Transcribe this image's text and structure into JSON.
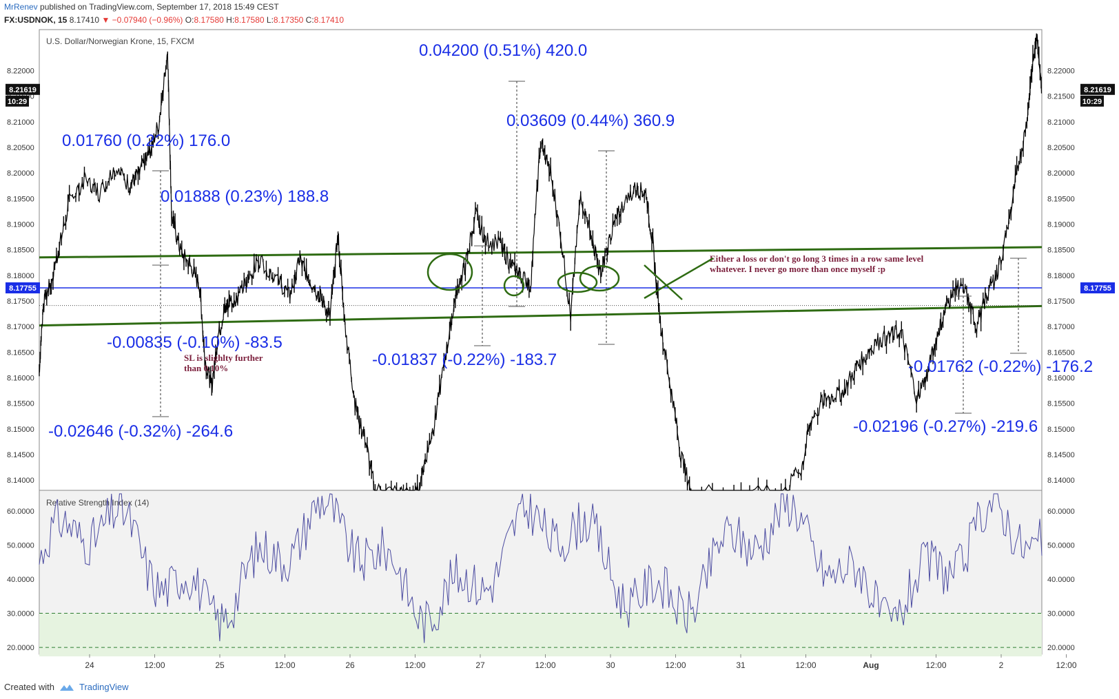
{
  "header": {
    "author": "MrRenev",
    "published": "published on TradingView.com, September 17, 2018 15:49 CEST",
    "symbol": "FX:USDNOK, 15",
    "last": "8.17410",
    "change": "−0.07940 (−0.96%)",
    "ohlc": [
      {
        "label": "O:",
        "value": "8.17580"
      },
      {
        "label": "H:",
        "value": "8.17580"
      },
      {
        "label": "L:",
        "value": "8.17350"
      },
      {
        "label": "C:",
        "value": "8.17410"
      }
    ]
  },
  "footer": {
    "created_with": "Created with",
    "brand": "TradingView"
  },
  "colors": {
    "candle": "#000000",
    "trendline": "#2e6b12",
    "hline": "#1a2ee6",
    "measure_text": "#1a2ee6",
    "note_text": "#7b1f3c",
    "rsi_line": "#4a4aa0",
    "rsi_bg": "#f2f2f2",
    "rsi_band": "#e6f3e0",
    "axis_text": "#333333"
  },
  "chart_data": [
    {
      "type": "line",
      "title": "U.S. Dollar/Norwegian Krone, 15, FXCM",
      "ylim": [
        8.138,
        8.228
      ],
      "y_ticks": [
        "8.14000",
        "8.14500",
        "8.15000",
        "8.15500",
        "8.16000",
        "8.16500",
        "8.17000",
        "8.17500",
        "8.18000",
        "8.18500",
        "8.19000",
        "8.19500",
        "8.20000",
        "8.20500",
        "8.21000",
        "8.21500",
        "8.22000"
      ],
      "x_ticks": [
        "24",
        "12:00",
        "25",
        "12:00",
        "26",
        "12:00",
        "27",
        "12:00",
        "30",
        "12:00",
        "31",
        "12:00",
        "Aug",
        "12:00",
        "2",
        "12:00"
      ],
      "price_label": {
        "value": "8.21619",
        "timer": "10:29"
      },
      "hline_label": "8.17755",
      "path": [
        [
          0,
          8.1615
        ],
        [
          0.004,
          8.174
        ],
        [
          0.012,
          8.179
        ],
        [
          0.02,
          8.1855
        ],
        [
          0.03,
          8.1945
        ],
        [
          0.045,
          8.1985
        ],
        [
          0.06,
          8.196
        ],
        [
          0.075,
          8.201
        ],
        [
          0.09,
          8.1975
        ],
        [
          0.1,
          8.2
        ],
        [
          0.11,
          8.204
        ],
        [
          0.12,
          8.21
        ],
        [
          0.128,
          8.224
        ],
        [
          0.132,
          8.192
        ],
        [
          0.14,
          8.185
        ],
        [
          0.15,
          8.182
        ],
        [
          0.16,
          8.178
        ],
        [
          0.165,
          8.164
        ],
        [
          0.172,
          8.158
        ],
        [
          0.178,
          8.168
        ],
        [
          0.185,
          8.173
        ],
        [
          0.19,
          8.175
        ],
        [
          0.2,
          8.176
        ],
        [
          0.21,
          8.18
        ],
        [
          0.22,
          8.183
        ],
        [
          0.235,
          8.18
        ],
        [
          0.25,
          8.176
        ],
        [
          0.26,
          8.183
        ],
        [
          0.27,
          8.179
        ],
        [
          0.28,
          8.176
        ],
        [
          0.29,
          8.172
        ],
        [
          0.298,
          8.188
        ],
        [
          0.305,
          8.17
        ],
        [
          0.315,
          8.155
        ],
        [
          0.325,
          8.148
        ],
        [
          0.335,
          8.138
        ],
        [
          0.36,
          8.1375
        ],
        [
          0.375,
          8.1365
        ],
        [
          0.385,
          8.144
        ],
        [
          0.395,
          8.152
        ],
        [
          0.405,
          8.164
        ],
        [
          0.415,
          8.176
        ],
        [
          0.425,
          8.182
        ],
        [
          0.435,
          8.192
        ],
        [
          0.445,
          8.187
        ],
        [
          0.46,
          8.186
        ],
        [
          0.47,
          8.182
        ],
        [
          0.48,
          8.18
        ],
        [
          0.49,
          8.178
        ],
        [
          0.5,
          8.206
        ],
        [
          0.51,
          8.2
        ],
        [
          0.52,
          8.188
        ],
        [
          0.53,
          8.172
        ],
        [
          0.54,
          8.196
        ],
        [
          0.55,
          8.188
        ],
        [
          0.56,
          8.18
        ],
        [
          0.57,
          8.188
        ],
        [
          0.58,
          8.193
        ],
        [
          0.595,
          8.197
        ],
        [
          0.605,
          8.196
        ],
        [
          0.612,
          8.186
        ],
        [
          0.62,
          8.17
        ],
        [
          0.63,
          8.158
        ],
        [
          0.64,
          8.145
        ],
        [
          0.65,
          8.138
        ],
        [
          0.7,
          8.137
        ],
        [
          0.74,
          8.1375
        ],
        [
          0.76,
          8.142
        ],
        [
          0.77,
          8.152
        ],
        [
          0.785,
          8.156
        ],
        [
          0.8,
          8.157
        ],
        [
          0.815,
          8.162
        ],
        [
          0.83,
          8.166
        ],
        [
          0.845,
          8.168
        ],
        [
          0.86,
          8.169
        ],
        [
          0.875,
          8.156
        ],
        [
          0.885,
          8.16
        ],
        [
          0.895,
          8.168
        ],
        [
          0.905,
          8.174
        ],
        [
          0.915,
          8.178
        ],
        [
          0.925,
          8.176
        ],
        [
          0.935,
          8.17
        ],
        [
          0.945,
          8.176
        ],
        [
          0.955,
          8.18
        ],
        [
          0.965,
          8.188
        ],
        [
          0.975,
          8.2
        ],
        [
          0.985,
          8.21
        ],
        [
          0.99,
          8.22
        ],
        [
          0.995,
          8.228
        ],
        [
          1.0,
          8.216
        ]
      ],
      "horizontal_line": 8.17755,
      "dotted_line": 8.1741,
      "trendlines": [
        {
          "from": [
            0,
            8.1835
          ],
          "to": [
            1,
            8.1855
          ]
        },
        {
          "from": [
            0,
            8.1702
          ],
          "to": [
            1,
            8.174
          ]
        }
      ],
      "measurements": [
        {
          "label": "0.01760 (0.22%) 176.0"
        },
        {
          "label": "0.01888 (0.23%) 188.8"
        },
        {
          "label": "-0.00835 (-0.10%) -83.5"
        },
        {
          "label": "-0.02646 (-0.32%) -264.6"
        },
        {
          "label": "0.04200 (0.51%) 420.0"
        },
        {
          "label": "0.03609 (0.44%) 360.9"
        },
        {
          "label": "-0.01837 (-0.22%) -183.7"
        },
        {
          "label": "-0.01762 (-0.22%) -176.2"
        },
        {
          "label": "-0.02196 (-0.27%) -219.6"
        }
      ],
      "notes": [
        {
          "lines": [
            "SL is slighlty further",
            "than 0.10%"
          ]
        },
        {
          "lines": [
            "Either a loss or don't go long 3 times in a row same level",
            "whatever. I never go more than once myself :p"
          ]
        }
      ]
    },
    {
      "type": "line",
      "title": "Relative Strength Index (14)",
      "ylim": [
        18,
        66
      ],
      "y_ticks": [
        "20.0000",
        "30.0000",
        "40.0000",
        "50.0000",
        "60.0000"
      ],
      "bands": [
        30,
        70
      ]
    }
  ]
}
